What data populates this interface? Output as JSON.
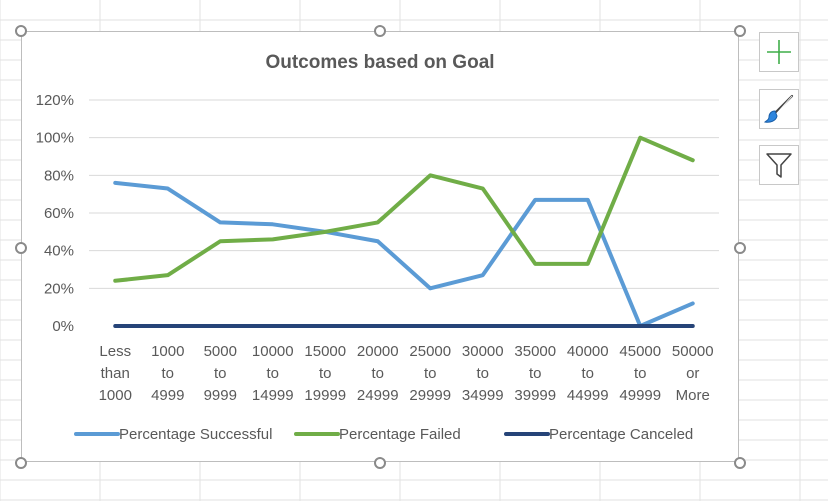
{
  "colors": {
    "successful": "#5b9bd5",
    "failed": "#70ad47",
    "canceled": "#264478",
    "gridline": "#d9d9d9",
    "text": "#595959"
  },
  "side_buttons": [
    {
      "name": "chart-elements-button",
      "icon": "plus-icon"
    },
    {
      "name": "chart-styles-button",
      "icon": "paintbrush-icon"
    },
    {
      "name": "chart-filters-button",
      "icon": "funnel-icon"
    }
  ],
  "chart_data": {
    "type": "line",
    "title": "Outcomes based on Goal",
    "xlabel": "",
    "ylabel": "",
    "ylim": [
      0,
      120
    ],
    "ytick_labels": [
      "0%",
      "20%",
      "40%",
      "60%",
      "80%",
      "100%",
      "120%"
    ],
    "yticks": [
      0,
      20,
      40,
      60,
      80,
      100,
      120
    ],
    "grid": true,
    "legend_position": "bottom",
    "categories": [
      [
        "Less",
        "than",
        "1000"
      ],
      [
        "1000",
        "to",
        "4999"
      ],
      [
        "5000",
        "to",
        "9999"
      ],
      [
        "10000",
        "to",
        "14999"
      ],
      [
        "15000",
        "to",
        "19999"
      ],
      [
        "20000",
        "to",
        "24999"
      ],
      [
        "25000",
        "to",
        "29999"
      ],
      [
        "30000",
        "to",
        "34999"
      ],
      [
        "35000",
        "to",
        "39999"
      ],
      [
        "40000",
        "to",
        "44999"
      ],
      [
        "45000",
        "to",
        "49999"
      ],
      [
        "50000",
        "or",
        "More"
      ]
    ],
    "series": [
      {
        "name": "Percentage Successful",
        "color": "#5b9bd5",
        "values": [
          76,
          73,
          55,
          54,
          50,
          45,
          20,
          27,
          67,
          67,
          0,
          12
        ]
      },
      {
        "name": "Percentage Failed",
        "color": "#70ad47",
        "values": [
          24,
          27,
          45,
          46,
          50,
          55,
          80,
          73,
          33,
          33,
          100,
          88
        ]
      },
      {
        "name": "Percentage Canceled",
        "color": "#264478",
        "values": [
          0,
          0,
          0,
          0,
          0,
          0,
          0,
          0,
          0,
          0,
          0,
          0
        ]
      }
    ]
  }
}
